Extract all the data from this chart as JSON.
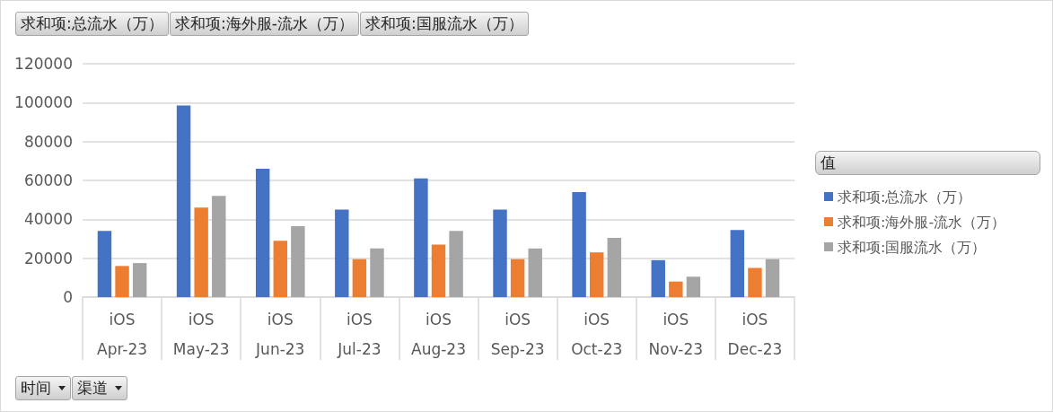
{
  "chart_data": {
    "type": "bar",
    "categories": [
      "iOS\nApr-23",
      "iOS\nMay-23",
      "iOS\nJun-23",
      "iOS\nJul-23",
      "iOS\nAug-23",
      "iOS\nSep-23",
      "iOS\nOct-23",
      "iOS\nNov-23",
      "iOS\nDec-23"
    ],
    "series": [
      {
        "name": "求和项:总流水（万）",
        "color": "#4472c4",
        "values": [
          34000,
          98500,
          66000,
          45000,
          61000,
          45000,
          54000,
          19000,
          34500
        ]
      },
      {
        "name": "求和项:海外服-流水（万）",
        "color": "#ed7d31",
        "values": [
          16000,
          46000,
          29000,
          19500,
          27000,
          19500,
          23000,
          8000,
          15000
        ]
      },
      {
        "name": "求和项:国服流水（万）",
        "color": "#a5a5a5",
        "values": [
          17500,
          52000,
          36500,
          25000,
          34000,
          25000,
          30500,
          10500,
          19500
        ]
      }
    ],
    "ylim": [
      0,
      120000
    ],
    "yticks": [
      0,
      20000,
      40000,
      60000,
      80000,
      100000,
      120000
    ],
    "grid": "y",
    "legend": "right",
    "legend_title": "值",
    "annotations": [
      "时间",
      "渠道"
    ]
  }
}
